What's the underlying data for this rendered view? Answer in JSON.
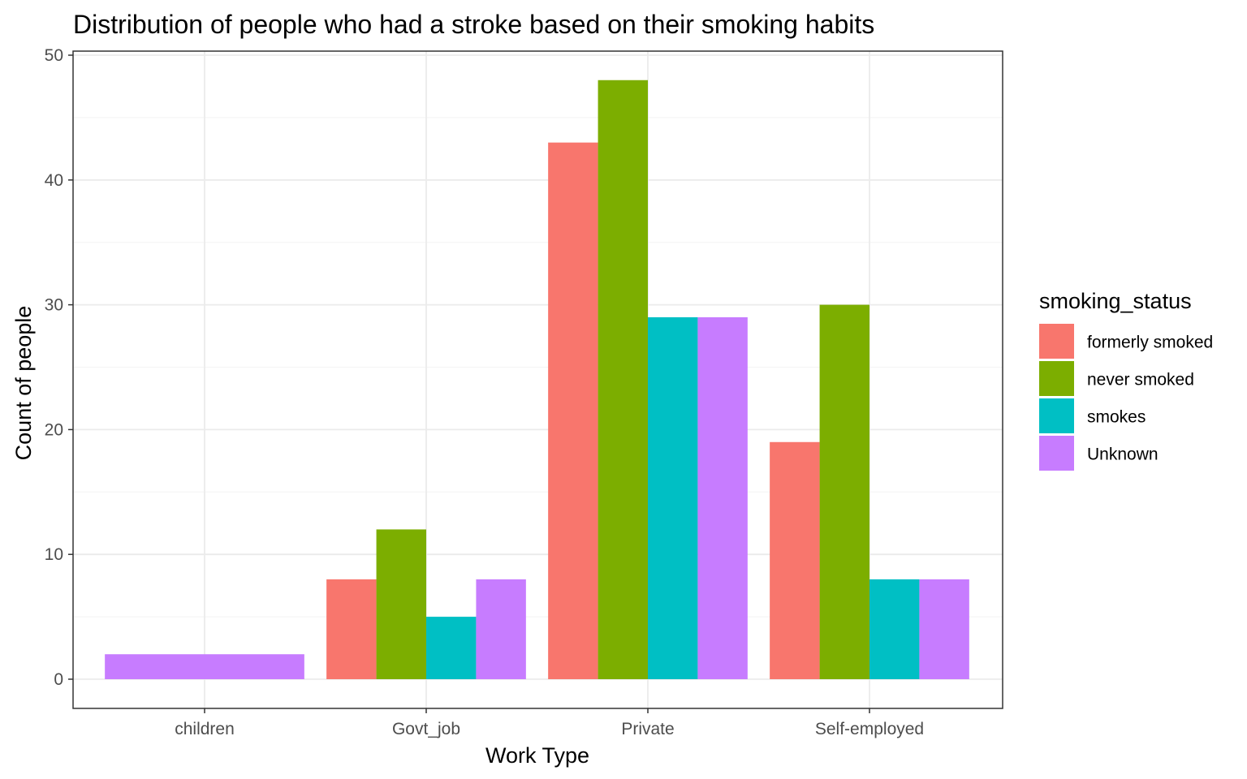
{
  "chart_data": {
    "type": "bar",
    "title": "Distribution of people who had a stroke based on their smoking habits",
    "xlabel": "Work Type",
    "ylabel": "Count of people",
    "categories": [
      "children",
      "Govt_job",
      "Private",
      "Self-employed"
    ],
    "series": [
      {
        "name": "formerly smoked",
        "color": "#F8766D",
        "values": [
          null,
          8,
          43,
          19
        ]
      },
      {
        "name": "never smoked",
        "color": "#7CAE00",
        "values": [
          null,
          12,
          48,
          30
        ]
      },
      {
        "name": "smokes",
        "color": "#00BFC4",
        "values": [
          null,
          5,
          29,
          8
        ]
      },
      {
        "name": "Unknown",
        "color": "#C77CFF",
        "values": [
          2,
          8,
          29,
          8
        ]
      }
    ],
    "ylim": [
      0,
      50
    ],
    "yticks": [
      0,
      10,
      20,
      30,
      40,
      50
    ],
    "grid": true,
    "legend": {
      "title": "smoking_status",
      "position": "right"
    },
    "style": {
      "background": "#FFFFFF",
      "panel_border": "#333333",
      "grid_major": "#EBEBEB",
      "grid_minor": "#F5F5F5",
      "tick_text": "#4D4D4D"
    }
  }
}
